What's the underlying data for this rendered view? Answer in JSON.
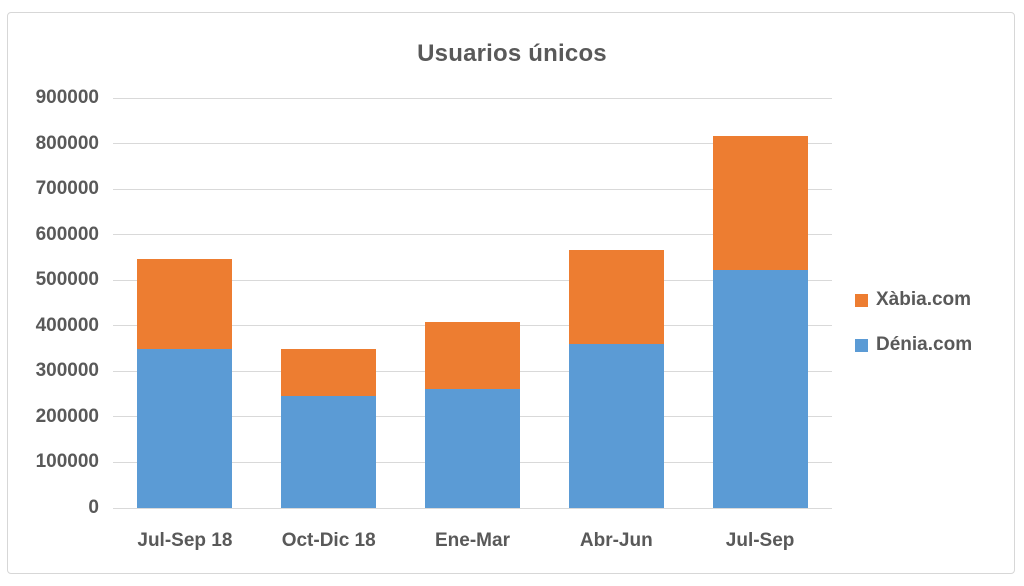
{
  "chart_data": {
    "type": "bar",
    "stacked": true,
    "title": "Usuarios únicos",
    "categories": [
      "Jul-Sep 18",
      "Oct-Dic 18",
      "Ene-Mar",
      "Abr-Jun",
      "Jul-Sep"
    ],
    "series": [
      {
        "name": "Dénia.com",
        "color": "#5B9BD5",
        "values": [
          350000,
          245000,
          262000,
          361000,
          523000
        ]
      },
      {
        "name": "Xàbia.com",
        "color": "#ED7D31",
        "values": [
          197000,
          105000,
          147000,
          205000,
          294000
        ]
      }
    ],
    "totals": [
      547000,
      350000,
      409000,
      566000,
      817000
    ],
    "xlabel": "",
    "ylabel": "",
    "ylim": [
      0,
      900000
    ],
    "y_ticks": [
      0,
      100000,
      200000,
      300000,
      400000,
      500000,
      600000,
      700000,
      800000,
      900000
    ],
    "grid": true,
    "legend_position": "right",
    "legend_order": [
      "Xàbia.com",
      "Dénia.com"
    ],
    "colors": {
      "text": "#595959",
      "gridline": "#D9D9D9",
      "frame_border": "#D7D7D7",
      "background": "#FFFFFF"
    }
  }
}
